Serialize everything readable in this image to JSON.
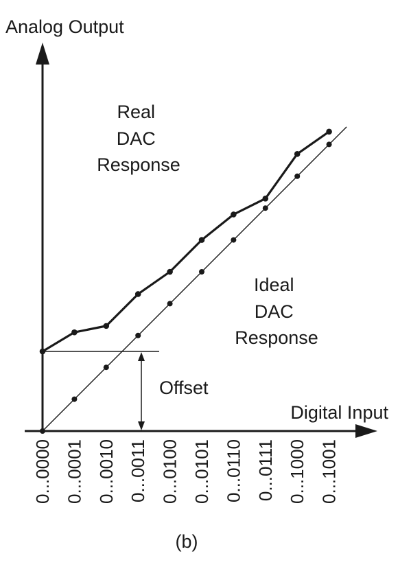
{
  "chart_data": {
    "type": "line",
    "title": "",
    "xlabel": "Digital Input",
    "ylabel": "Analog Output",
    "categories": [
      "0...0000",
      "0...0001",
      "0...0010",
      "0...0011",
      "0...0100",
      "0...0101",
      "0...0110",
      "0...0111",
      "0...1000",
      "0...1001"
    ],
    "ylim": [
      0,
      11.5
    ],
    "grid": false,
    "series": [
      {
        "name": "Real DAC Response",
        "label_lines": [
          "Real",
          "DAC",
          "Response"
        ],
        "values": [
          2.5,
          3.1,
          3.3,
          4.3,
          5.0,
          6.0,
          6.8,
          7.3,
          8.7,
          9.4
        ]
      },
      {
        "name": "Ideal DAC Response",
        "label_lines": [
          "Ideal",
          "DAC",
          "Response"
        ],
        "values": [
          0,
          1,
          2,
          3,
          4,
          5,
          6,
          7,
          8,
          9
        ]
      }
    ],
    "annotations": {
      "offset_label": "Offset",
      "offset_value": 2.5
    },
    "caption": "(b)"
  }
}
